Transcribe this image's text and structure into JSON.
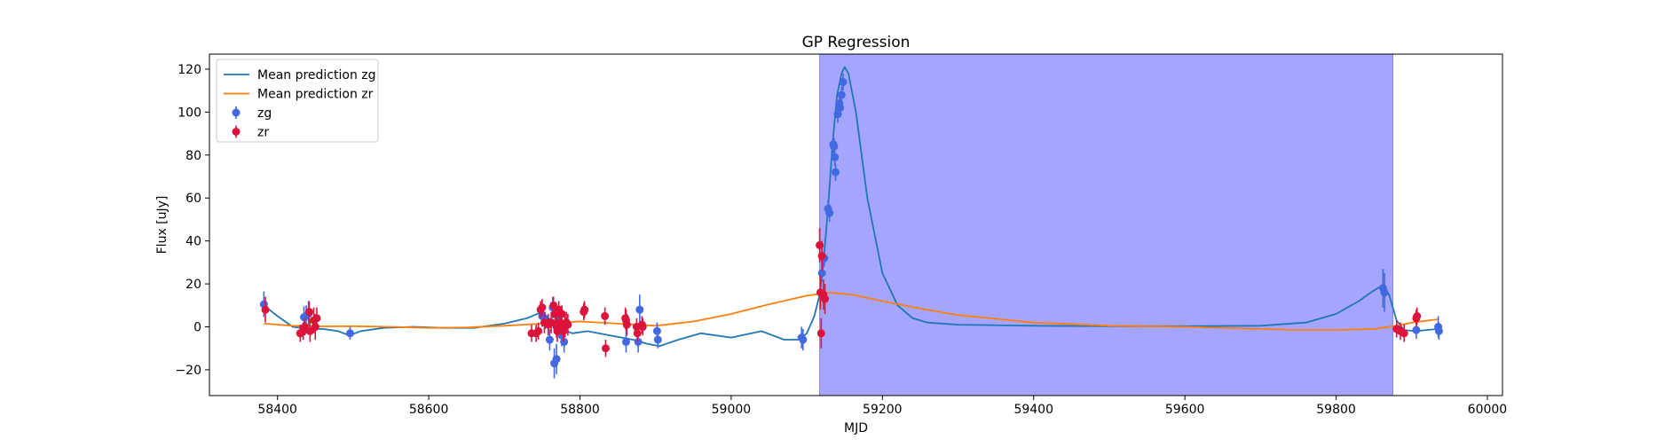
{
  "chart_data": {
    "type": "scatter",
    "title": "GP Regression",
    "xlabel": "MJD",
    "ylabel": "Flux [uJy]",
    "xlim": [
      58310,
      60020
    ],
    "ylim": [
      -32,
      127
    ],
    "x_ticks": [
      58400,
      58600,
      58800,
      59000,
      59200,
      59400,
      59600,
      59800,
      60000
    ],
    "y_ticks": [
      -20,
      0,
      20,
      40,
      60,
      80,
      100,
      120
    ],
    "grid": false,
    "legend_position": "top-left",
    "shaded_region": {
      "x_start": 59117,
      "x_end": 59875,
      "color": "#a5a5fd"
    },
    "series": [
      {
        "name": "Mean prediction zg",
        "kind": "line",
        "color": "#1f77b4",
        "x": [
          58382,
          58400,
          58420,
          58440,
          58460,
          58480,
          58495,
          58510,
          58540,
          58580,
          58620,
          58660,
          58700,
          58730,
          58750,
          58762,
          58775,
          58790,
          58810,
          58840,
          58870,
          58890,
          58905,
          58930,
          58960,
          59000,
          59040,
          59070,
          59090,
          59100,
          59110,
          59117,
          59122,
          59128,
          59134,
          59140,
          59146,
          59150,
          59155,
          59165,
          59180,
          59200,
          59220,
          59240,
          59260,
          59300,
          59400,
          59500,
          59600,
          59700,
          59760,
          59800,
          59830,
          59850,
          59860,
          59870,
          59880,
          59890,
          59905,
          59920,
          59935
        ],
        "y": [
          10,
          5,
          0,
          -1,
          -1,
          -2,
          -4,
          -2,
          -0.5,
          0,
          -0.5,
          -0.5,
          1.5,
          4,
          7,
          3,
          -1,
          -3,
          -2,
          -4,
          -6,
          -8,
          -9,
          -6,
          -3,
          -5,
          -2,
          -6,
          -6,
          -3,
          5,
          15,
          30,
          55,
          85,
          108,
          118,
          121,
          118,
          100,
          60,
          25,
          10,
          4,
          2,
          1,
          0.5,
          0.3,
          0.3,
          0.5,
          2,
          6,
          12,
          17,
          19,
          15,
          3,
          -1.5,
          -2,
          -1.5,
          -1
        ]
      },
      {
        "name": "Mean prediction zr",
        "kind": "line",
        "color": "#ff7f0e",
        "x": [
          58382,
          58420,
          58460,
          58500,
          58550,
          58600,
          58650,
          58700,
          58750,
          58800,
          58850,
          58900,
          58950,
          59000,
          59050,
          59100,
          59130,
          59160,
          59200,
          59250,
          59300,
          59400,
          59500,
          59600,
          59700,
          59750,
          59800,
          59850,
          59870,
          59880,
          59900,
          59935
        ],
        "y": [
          1.5,
          0.5,
          0.2,
          0.3,
          0,
          -0.5,
          -0.3,
          0.5,
          1.5,
          2.5,
          1.5,
          0.5,
          2.5,
          6,
          10.5,
          14.5,
          16,
          15,
          12,
          8.5,
          5.5,
          2,
          0.5,
          0,
          -1,
          -1.5,
          -1.5,
          -1,
          0,
          0.5,
          2,
          3.5
        ]
      },
      {
        "name": "zg",
        "kind": "errorbar",
        "color": "#4169e1",
        "points": [
          [
            58382,
            10.5,
            6
          ],
          [
            58435,
            4.5,
            5
          ],
          [
            58438,
            5,
            5
          ],
          [
            58441,
            6,
            6
          ],
          [
            58496,
            -3,
            3
          ],
          [
            58750,
            5,
            5
          ],
          [
            58754,
            3,
            4
          ],
          [
            58760,
            -6,
            5
          ],
          [
            58764,
            9,
            5
          ],
          [
            58766,
            -17,
            7
          ],
          [
            58769,
            -15,
            7
          ],
          [
            58772,
            3,
            5
          ],
          [
            58776,
            -4,
            5
          ],
          [
            58779,
            -7,
            5
          ],
          [
            58861,
            -7,
            5
          ],
          [
            58877,
            -7,
            5
          ],
          [
            58879,
            8,
            7
          ],
          [
            58902,
            -2,
            4
          ],
          [
            58903,
            -6,
            4
          ],
          [
            59093,
            -5,
            5
          ],
          [
            59095,
            -6,
            5
          ],
          [
            59120,
            25,
            4
          ],
          [
            59123,
            32,
            4
          ],
          [
            59128,
            55,
            4
          ],
          [
            59130,
            53,
            4
          ],
          [
            59135,
            85,
            4
          ],
          [
            59136,
            84,
            4
          ],
          [
            59137,
            79,
            4
          ],
          [
            59138,
            72,
            4
          ],
          [
            59141,
            99,
            4
          ],
          [
            59143,
            104,
            4
          ],
          [
            59144,
            102,
            4
          ],
          [
            59146,
            108,
            4
          ],
          [
            59148,
            114,
            4
          ],
          [
            59862,
            18,
            9
          ],
          [
            59864,
            16,
            9
          ],
          [
            59906,
            -1.5,
            4
          ],
          [
            59935,
            0,
            5
          ],
          [
            59936,
            -2,
            4
          ]
        ]
      },
      {
        "name": "zr",
        "kind": "errorbar",
        "color": "#dc143c",
        "points": [
          [
            58384,
            8,
            6
          ],
          [
            58430,
            -3,
            4
          ],
          [
            58434,
            -2,
            4
          ],
          [
            58436,
            0,
            4
          ],
          [
            58442,
            7,
            5
          ],
          [
            58443,
            -2,
            5
          ],
          [
            58448,
            3,
            6
          ],
          [
            58450,
            0,
            6
          ],
          [
            58452,
            4,
            5
          ],
          [
            58736,
            -3,
            4
          ],
          [
            58742,
            -3,
            4
          ],
          [
            58745,
            -2,
            4
          ],
          [
            58748,
            8,
            4
          ],
          [
            58750,
            9,
            4
          ],
          [
            58753,
            2,
            5
          ],
          [
            58758,
            1,
            5
          ],
          [
            58762,
            2,
            5
          ],
          [
            58765,
            10,
            4
          ],
          [
            58767,
            6,
            5
          ],
          [
            58769,
            0,
            5
          ],
          [
            58770,
            -2,
            5
          ],
          [
            58772,
            8,
            4
          ],
          [
            58774,
            2,
            5
          ],
          [
            58776,
            6,
            4
          ],
          [
            58778,
            -2,
            5
          ],
          [
            58780,
            0,
            5
          ],
          [
            58782,
            2,
            5
          ],
          [
            58784,
            1,
            5
          ],
          [
            58805,
            7,
            4
          ],
          [
            58806,
            8,
            4
          ],
          [
            58833,
            5,
            4
          ],
          [
            58834,
            -10,
            4
          ],
          [
            58860,
            4,
            5
          ],
          [
            58861,
            3,
            5
          ],
          [
            58862,
            1,
            5
          ],
          [
            58875,
            0,
            4
          ],
          [
            58876,
            -3,
            4
          ],
          [
            58882,
            1,
            4
          ],
          [
            58883,
            0,
            4
          ],
          [
            59117,
            38,
            8
          ],
          [
            59118,
            16,
            8
          ],
          [
            59119,
            -3,
            7
          ],
          [
            59120,
            33,
            7
          ],
          [
            59122,
            15,
            7
          ],
          [
            59124,
            13,
            7
          ],
          [
            59880,
            -1,
            4
          ],
          [
            59885,
            -2,
            4
          ],
          [
            59890,
            -3,
            4
          ],
          [
            59906,
            4,
            4
          ],
          [
            59907,
            5,
            4
          ]
        ]
      }
    ]
  }
}
